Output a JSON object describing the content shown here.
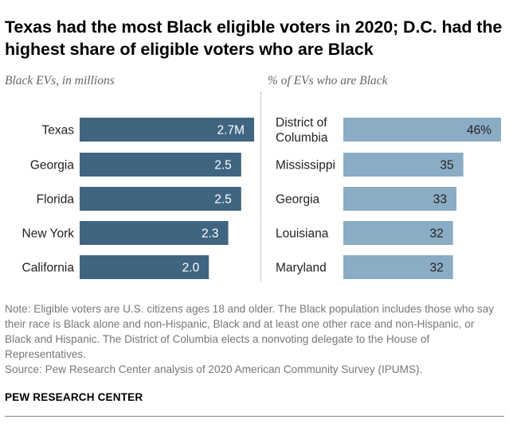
{
  "title": "Texas had the most Black eligible voters in 2020; D.C. had the highest share of eligible voters who are Black",
  "note": "Note: Eligible voters are U.S. citizens ages 18 and older. The Black population includes those who say their race is Black alone and non-Hispanic, Black and at least one other race and non-Hispanic, or Black and Hispanic. The District of Columbia elects a nonvoting delegate to the House of Representatives.",
  "source": "Source: Pew Research Center analysis of 2020 American Community Survey (IPUMS).",
  "brand": "PEW RESEARCH CENTER",
  "colors": {
    "left_bar": "#3f6581",
    "right_bar": "#8aacc4",
    "left_text": "#ffffff",
    "right_text": "#222222"
  },
  "chart_data": [
    {
      "type": "bar",
      "orientation": "horizontal",
      "subtitle": "Black EVs, in millions",
      "categories": [
        "Texas",
        "Georgia",
        "Florida",
        "New York",
        "California"
      ],
      "values": [
        2.7,
        2.5,
        2.5,
        2.3,
        2.0
      ],
      "value_labels": [
        "2.7M",
        "2.5",
        "2.5",
        "2.3",
        "2.0"
      ],
      "unit": "millions"
    },
    {
      "type": "bar",
      "orientation": "horizontal",
      "subtitle": "% of EVs who are Black",
      "categories": [
        "District of Columbia",
        "Mississippi",
        "Georgia",
        "Louisiana",
        "Maryland"
      ],
      "category_lines": [
        [
          "District of",
          "Columbia"
        ],
        [
          "Mississippi"
        ],
        [
          "Georgia"
        ],
        [
          "Louisiana"
        ],
        [
          "Maryland"
        ]
      ],
      "values": [
        46,
        35,
        33,
        32,
        32
      ],
      "value_labels": [
        "46%",
        "35",
        "33",
        "32",
        "32"
      ],
      "unit": "%"
    }
  ]
}
